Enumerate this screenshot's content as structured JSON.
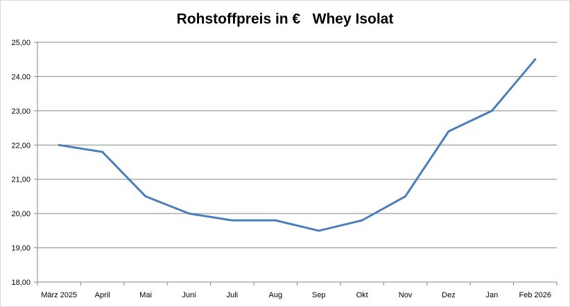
{
  "chart_data": {
    "type": "line",
    "title": "Rohstoffpreis in €   Whey Isolat",
    "categories": [
      "März 2025",
      "April",
      "Mai",
      "Juni",
      "Juli",
      "Aug",
      "Sep",
      "Okt",
      "Nov",
      "Dez",
      "Jan",
      "Feb 2026"
    ],
    "series": [
      {
        "values": [
          22.0,
          21.8,
          20.5,
          20.0,
          19.8,
          19.8,
          19.5,
          19.8,
          20.5,
          22.4,
          23.0,
          24.5
        ]
      }
    ],
    "ylim": [
      18,
      25
    ],
    "yticks": [
      "18,00",
      "19,00",
      "20,00",
      "21,00",
      "22,00",
      "23,00",
      "24,00",
      "25,00"
    ],
    "grid": true,
    "legend": "none",
    "colors": {
      "line": "#4a7ebb",
      "grid": "#868686",
      "axis": "#868686"
    }
  }
}
